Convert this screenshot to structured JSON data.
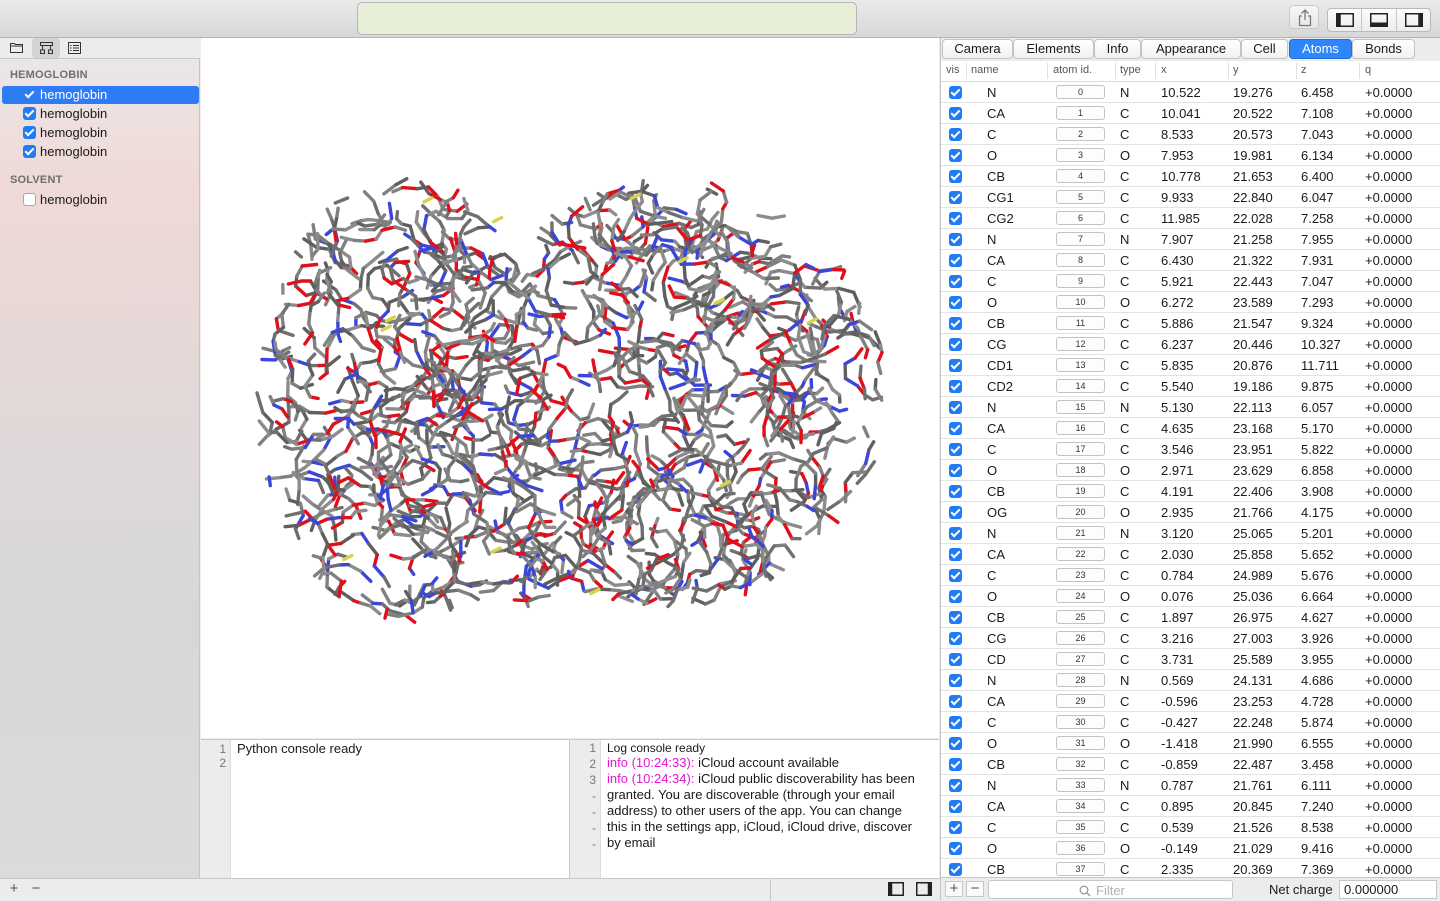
{
  "sidebar": {
    "groups": [
      {
        "title": "HEMOGLOBIN",
        "items": [
          {
            "label": "hemoglobin",
            "checked": true,
            "selected": true
          },
          {
            "label": "hemoglobin",
            "checked": true,
            "selected": false
          },
          {
            "label": "hemoglobin",
            "checked": true,
            "selected": false
          },
          {
            "label": "hemoglobin",
            "checked": true,
            "selected": false
          }
        ]
      },
      {
        "title": "SOLVENT",
        "items": [
          {
            "label": "hemoglobin",
            "checked": false,
            "selected": false
          }
        ]
      }
    ],
    "add_label": "+",
    "remove_label": "−"
  },
  "python_console": {
    "line_numbers": [
      "1",
      "2"
    ],
    "lines": [
      "Python console ready",
      ""
    ]
  },
  "log_console": {
    "line_numbers": [
      "1",
      "2",
      "3",
      "-",
      "-",
      "-",
      "-",
      "-"
    ],
    "lines": [
      {
        "prefix": "",
        "text": "Log console ready"
      },
      {
        "prefix": "info (10:24:33):",
        "text": " iCloud account available"
      },
      {
        "prefix": "info (10:24:34):",
        "text": " iCloud public discoverability has been"
      },
      {
        "prefix": "",
        "text": "granted. You are discoverable (through your email"
      },
      {
        "prefix": "",
        "text": "address) to other users of the app. You can change"
      },
      {
        "prefix": "",
        "text": "this in the settings app, iCloud, iCloud drive, discover"
      },
      {
        "prefix": "",
        "text": "by email"
      }
    ]
  },
  "inspector": {
    "tabs": [
      "Camera",
      "Elements",
      "Info",
      "Appearance",
      "Cell",
      "Atoms",
      "Bonds"
    ],
    "active_tab": "Atoms",
    "columns": [
      "vis",
      "name",
      "atom id.",
      "type",
      "x",
      "y",
      "z",
      "q"
    ],
    "atoms": [
      [
        "N",
        "0",
        "N",
        "10.522",
        "19.276",
        "6.458",
        "+0.0000"
      ],
      [
        "CA",
        "1",
        "C",
        "10.041",
        "20.522",
        "7.108",
        "+0.0000"
      ],
      [
        "C",
        "2",
        "C",
        "8.533",
        "20.573",
        "7.043",
        "+0.0000"
      ],
      [
        "O",
        "3",
        "O",
        "7.953",
        "19.981",
        "6.134",
        "+0.0000"
      ],
      [
        "CB",
        "4",
        "C",
        "10.778",
        "21.653",
        "6.400",
        "+0.0000"
      ],
      [
        "CG1",
        "5",
        "C",
        "9.933",
        "22.840",
        "6.047",
        "+0.0000"
      ],
      [
        "CG2",
        "6",
        "C",
        "11.985",
        "22.028",
        "7.258",
        "+0.0000"
      ],
      [
        "N",
        "7",
        "N",
        "7.907",
        "21.258",
        "7.955",
        "+0.0000"
      ],
      [
        "CA",
        "8",
        "C",
        "6.430",
        "21.322",
        "7.931",
        "+0.0000"
      ],
      [
        "C",
        "9",
        "C",
        "5.921",
        "22.443",
        "7.047",
        "+0.0000"
      ],
      [
        "O",
        "10",
        "O",
        "6.272",
        "23.589",
        "7.293",
        "+0.0000"
      ],
      [
        "CB",
        "11",
        "C",
        "5.886",
        "21.547",
        "9.324",
        "+0.0000"
      ],
      [
        "CG",
        "12",
        "C",
        "6.237",
        "20.446",
        "10.327",
        "+0.0000"
      ],
      [
        "CD1",
        "13",
        "C",
        "5.835",
        "20.876",
        "11.711",
        "+0.0000"
      ],
      [
        "CD2",
        "14",
        "C",
        "5.540",
        "19.186",
        "9.875",
        "+0.0000"
      ],
      [
        "N",
        "15",
        "N",
        "5.130",
        "22.113",
        "6.057",
        "+0.0000"
      ],
      [
        "CA",
        "16",
        "C",
        "4.635",
        "23.168",
        "5.170",
        "+0.0000"
      ],
      [
        "C",
        "17",
        "C",
        "3.546",
        "23.951",
        "5.822",
        "+0.0000"
      ],
      [
        "O",
        "18",
        "O",
        "2.971",
        "23.629",
        "6.858",
        "+0.0000"
      ],
      [
        "CB",
        "19",
        "C",
        "4.191",
        "22.406",
        "3.908",
        "+0.0000"
      ],
      [
        "OG",
        "20",
        "O",
        "2.935",
        "21.766",
        "4.175",
        "+0.0000"
      ],
      [
        "N",
        "21",
        "N",
        "3.120",
        "25.065",
        "5.201",
        "+0.0000"
      ],
      [
        "CA",
        "22",
        "C",
        "2.030",
        "25.858",
        "5.652",
        "+0.0000"
      ],
      [
        "C",
        "23",
        "C",
        "0.784",
        "24.989",
        "5.676",
        "+0.0000"
      ],
      [
        "O",
        "24",
        "O",
        "0.076",
        "25.036",
        "6.664",
        "+0.0000"
      ],
      [
        "CB",
        "25",
        "C",
        "1.897",
        "26.975",
        "4.627",
        "+0.0000"
      ],
      [
        "CG",
        "26",
        "C",
        "3.216",
        "27.003",
        "3.926",
        "+0.0000"
      ],
      [
        "CD",
        "27",
        "C",
        "3.731",
        "25.589",
        "3.955",
        "+0.0000"
      ],
      [
        "N",
        "28",
        "N",
        "0.569",
        "24.131",
        "4.686",
        "+0.0000"
      ],
      [
        "CA",
        "29",
        "C",
        "-0.596",
        "23.253",
        "4.728",
        "+0.0000"
      ],
      [
        "C",
        "30",
        "C",
        "-0.427",
        "22.248",
        "5.874",
        "+0.0000"
      ],
      [
        "O",
        "31",
        "O",
        "-1.418",
        "21.990",
        "6.555",
        "+0.0000"
      ],
      [
        "CB",
        "32",
        "C",
        "-0.859",
        "22.487",
        "3.458",
        "+0.0000"
      ],
      [
        "N",
        "33",
        "N",
        "0.787",
        "21.761",
        "6.111",
        "+0.0000"
      ],
      [
        "CA",
        "34",
        "C",
        "0.895",
        "20.845",
        "7.240",
        "+0.0000"
      ],
      [
        "C",
        "35",
        "C",
        "0.539",
        "21.526",
        "8.538",
        "+0.0000"
      ],
      [
        "O",
        "36",
        "O",
        "-0.149",
        "21.029",
        "9.416",
        "+0.0000"
      ],
      [
        "CB",
        "37",
        "C",
        "2.335",
        "20.369",
        "7.369",
        "+0.0000"
      ]
    ],
    "filter_placeholder": "Filter",
    "net_charge_label": "Net charge",
    "net_charge_value": "0.000000",
    "add_label": "+",
    "remove_label": "−"
  },
  "colors": {
    "accent": "#2d86fb",
    "carbon": "#7a7a7a",
    "oxygen": "#e0101a",
    "nitrogen": "#3b46d8",
    "sulfur": "#d8d24a",
    "info_text": "#e319d1"
  }
}
